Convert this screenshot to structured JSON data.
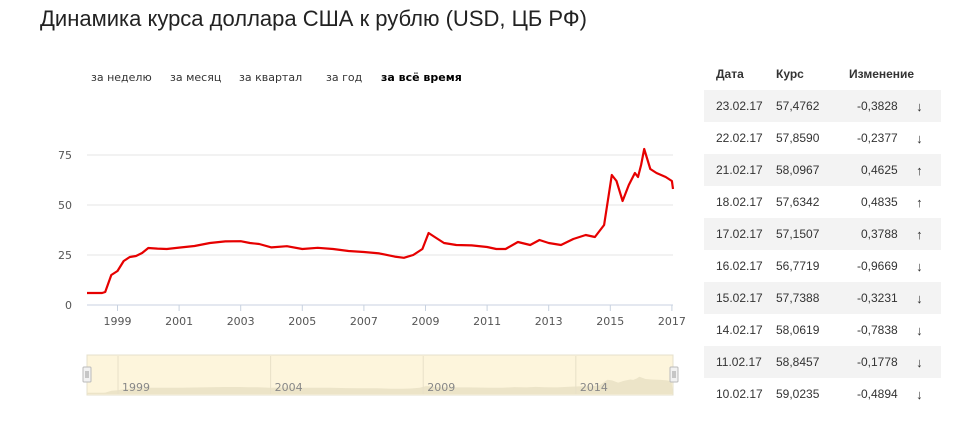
{
  "header": {
    "title": "Динамика курса доллара США к рублю (USD, ЦБ РФ)"
  },
  "periods": [
    {
      "label": "за неделю",
      "active": false
    },
    {
      "label": "за месяц",
      "active": false
    },
    {
      "label": "за квартал",
      "active": false
    },
    {
      "label": "за год",
      "active": false
    },
    {
      "label": "за всё время",
      "active": true
    }
  ],
  "table": {
    "headers": {
      "date": "Дата",
      "rate": "Курс",
      "change": "Изменение"
    },
    "rows": [
      {
        "date": "23.02.17",
        "rate": "57,4762",
        "change": "-0,3828",
        "dir": "down",
        "arrow": "↓"
      },
      {
        "date": "22.02.17",
        "rate": "57,8590",
        "change": "-0,2377",
        "dir": "down",
        "arrow": "↓"
      },
      {
        "date": "21.02.17",
        "rate": "58,0967",
        "change": "0,4625",
        "dir": "up",
        "arrow": "↑"
      },
      {
        "date": "18.02.17",
        "rate": "57,6342",
        "change": "0,4835",
        "dir": "up",
        "arrow": "↑"
      },
      {
        "date": "17.02.17",
        "rate": "57,1507",
        "change": "0,3788",
        "dir": "up",
        "arrow": "↑"
      },
      {
        "date": "16.02.17",
        "rate": "56,7719",
        "change": "-0,9669",
        "dir": "down",
        "arrow": "↓"
      },
      {
        "date": "15.02.17",
        "rate": "57,7388",
        "change": "-0,3231",
        "dir": "down",
        "arrow": "↓"
      },
      {
        "date": "14.02.17",
        "rate": "58,0619",
        "change": "-0,7838",
        "dir": "down",
        "arrow": "↓"
      },
      {
        "date": "11.02.17",
        "rate": "58,8457",
        "change": "-0,1778",
        "dir": "down",
        "arrow": "↓"
      },
      {
        "date": "10.02.17",
        "rate": "59,0235",
        "change": "-0,4894",
        "dir": "down",
        "arrow": "↓"
      }
    ]
  },
  "colors": {
    "line": "#e60000",
    "up": "#2ecc40",
    "down": "#e8403a",
    "grid": "#e6e6e6",
    "navigator_bg": "#fdf5dc",
    "navigator_fill": "#ece4c8"
  },
  "navigator": {
    "ticks": [
      "1999",
      "2004",
      "2009",
      "2014"
    ]
  },
  "chart_data": {
    "type": "line",
    "title": "Динамика курса доллара США к рублю (USD, ЦБ РФ)",
    "xlabel": "",
    "ylabel": "",
    "ylim": [
      0,
      90
    ],
    "yticks": [
      "0",
      "25",
      "50",
      "75"
    ],
    "xticks": [
      "1999",
      "2001",
      "2003",
      "2005",
      "2007",
      "2009",
      "2011",
      "2013",
      "2015",
      "2017"
    ],
    "grid": true,
    "legend": "none",
    "series": [
      {
        "name": "USD/RUB",
        "x": [
          1998.0,
          1998.5,
          1998.6,
          1998.8,
          1999.0,
          1999.2,
          1999.4,
          1999.6,
          1999.8,
          2000.0,
          2000.3,
          2000.6,
          2001.0,
          2001.5,
          2002.0,
          2002.5,
          2003.0,
          2003.3,
          2003.6,
          2004.0,
          2004.5,
          2005.0,
          2005.5,
          2006.0,
          2006.5,
          2007.0,
          2007.5,
          2008.0,
          2008.3,
          2008.6,
          2008.9,
          2009.1,
          2009.3,
          2009.6,
          2010.0,
          2010.5,
          2011.0,
          2011.3,
          2011.6,
          2012.0,
          2012.4,
          2012.7,
          2013.0,
          2013.4,
          2013.8,
          2014.2,
          2014.5,
          2014.8,
          2015.05,
          2015.2,
          2015.4,
          2015.6,
          2015.8,
          2015.9,
          2016.0,
          2016.1,
          2016.3,
          2016.5,
          2016.8,
          2017.0,
          2017.15
        ],
        "values": [
          6,
          6,
          6.5,
          15,
          17,
          22,
          24,
          24.5,
          26,
          28.5,
          28.2,
          28,
          28.7,
          29.5,
          31,
          31.8,
          31.9,
          31,
          30.5,
          28.8,
          29.4,
          28,
          28.6,
          28,
          27,
          26.5,
          25.8,
          24.2,
          23.6,
          25,
          28,
          36,
          34,
          31,
          30,
          29.8,
          29,
          28,
          28,
          31.5,
          30,
          32.5,
          31,
          30,
          33,
          35,
          34,
          40,
          65,
          62,
          52,
          60,
          66,
          64,
          70,
          78,
          68,
          66,
          64,
          62,
          58
        ]
      }
    ]
  }
}
